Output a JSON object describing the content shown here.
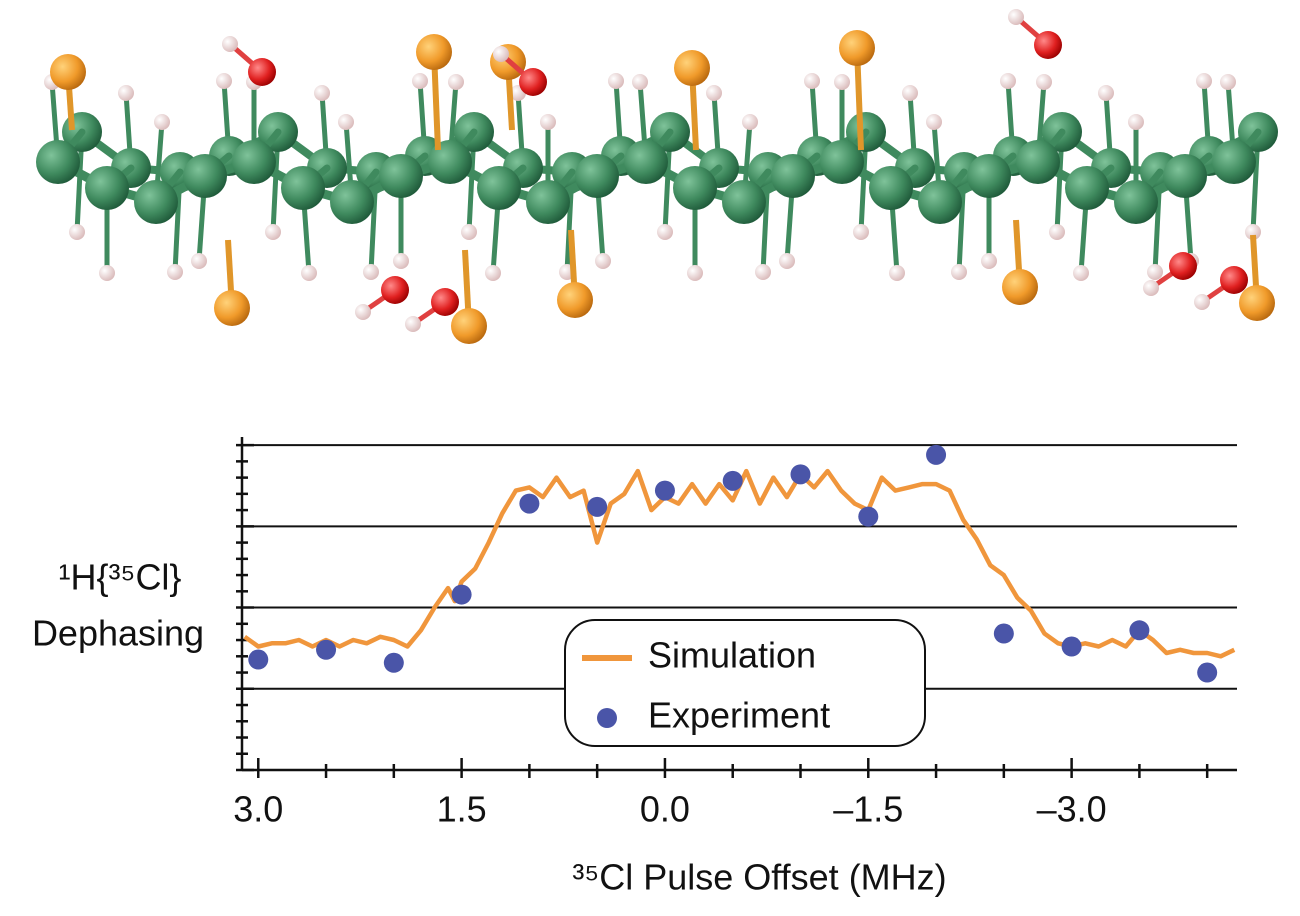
{
  "chart_data": {
    "type": "line",
    "ylabel": [
      "¹H{³⁵Cl}",
      "Dephasing"
    ],
    "xlabel": "³⁵Cl Pulse Offset (MHz)",
    "xlim": [
      3.12,
      -4.22
    ],
    "xticks": [
      {
        "value": 3,
        "label": "3.0"
      },
      {
        "value": 1.5,
        "label": "1.5"
      },
      {
        "value": 0,
        "label": "0.0"
      },
      {
        "value": -1.5,
        "label": "–1.5"
      },
      {
        "value": -3,
        "label": "–3.0"
      }
    ],
    "xminorticks": [
      2.5,
      2,
      1,
      0.5,
      -0.5,
      -1,
      -2,
      -2.5,
      -3.5,
      -4
    ],
    "ylim": [
      0,
      1.025
    ],
    "yticks": [
      0,
      0.25,
      0.5,
      0.75,
      1
    ],
    "yminorticks": [
      0.05,
      0.1,
      0.15,
      0.2,
      0.3,
      0.35,
      0.4,
      0.45,
      0.55,
      0.6,
      0.65,
      0.7,
      0.8,
      0.85,
      0.9,
      0.95
    ],
    "grid": true,
    "series": [
      {
        "name": "Simulation",
        "color": "#f0963c",
        "kind": "line",
        "x": [
          3.1,
          3.0,
          2.9,
          2.8,
          2.7,
          2.6,
          2.5,
          2.4,
          2.3,
          2.2,
          2.1,
          2.0,
          1.9,
          1.8,
          1.7,
          1.6,
          1.55,
          1.5,
          1.4,
          1.3,
          1.2,
          1.1,
          1.0,
          0.9,
          0.8,
          0.7,
          0.6,
          0.5,
          0.4,
          0.3,
          0.2,
          0.1,
          0.0,
          -0.1,
          -0.2,
          -0.3,
          -0.4,
          -0.5,
          -0.6,
          -0.7,
          -0.8,
          -0.9,
          -1.0,
          -1.1,
          -1.2,
          -1.3,
          -1.4,
          -1.5,
          -1.6,
          -1.7,
          -1.8,
          -1.9,
          -2.0,
          -2.1,
          -2.2,
          -2.3,
          -2.4,
          -2.5,
          -2.6,
          -2.7,
          -2.8,
          -2.9,
          -3.0,
          -3.1,
          -3.2,
          -3.3,
          -3.4,
          -3.5,
          -3.6,
          -3.7,
          -3.8,
          -3.9,
          -4.0,
          -4.1,
          -4.2
        ],
        "values": [
          0.41,
          0.38,
          0.39,
          0.39,
          0.4,
          0.38,
          0.4,
          0.38,
          0.4,
          0.39,
          0.41,
          0.4,
          0.38,
          0.43,
          0.5,
          0.56,
          0.52,
          0.58,
          0.62,
          0.7,
          0.79,
          0.86,
          0.87,
          0.84,
          0.9,
          0.84,
          0.86,
          0.7,
          0.82,
          0.85,
          0.92,
          0.8,
          0.84,
          0.82,
          0.88,
          0.82,
          0.88,
          0.83,
          0.92,
          0.82,
          0.9,
          0.84,
          0.91,
          0.87,
          0.92,
          0.86,
          0.82,
          0.8,
          0.9,
          0.86,
          0.87,
          0.88,
          0.88,
          0.86,
          0.77,
          0.71,
          0.63,
          0.6,
          0.53,
          0.49,
          0.42,
          0.39,
          0.38,
          0.39,
          0.38,
          0.4,
          0.38,
          0.43,
          0.4,
          0.36,
          0.37,
          0.36,
          0.36,
          0.35,
          0.37
        ]
      },
      {
        "name": "Experiment",
        "color": "#4a55a8",
        "kind": "scatter",
        "x": [
          3.0,
          2.5,
          2.0,
          1.5,
          1.0,
          0.5,
          0.0,
          -0.5,
          -1.0,
          -1.5,
          -2.0,
          -2.5,
          -3.0,
          -3.5,
          -4.0
        ],
        "values": [
          0.34,
          0.37,
          0.33,
          0.54,
          0.82,
          0.81,
          0.86,
          0.89,
          0.91,
          0.78,
          0.97,
          0.42,
          0.38,
          0.43,
          0.3
        ]
      }
    ]
  }
}
